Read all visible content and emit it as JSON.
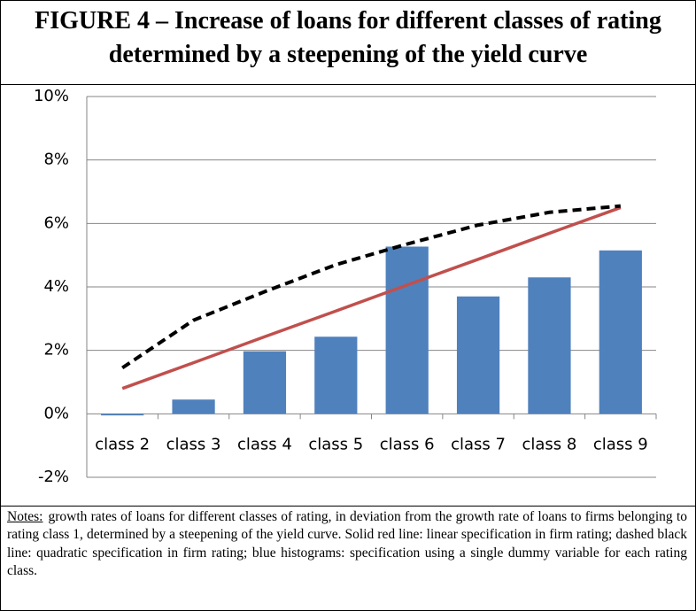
{
  "chart_data": {
    "type": "bar-line",
    "title": "FIGURE 4 – Increase of loans for different classes of rating determined by a steepening of the yield curve",
    "categories": [
      "class 2",
      "class 3",
      "class 4",
      "class 5",
      "class 6",
      "class 7",
      "class 8",
      "class 9"
    ],
    "series": [
      {
        "kind": "bar",
        "color": "#4f81bd",
        "values": [
          -0.05,
          0.45,
          1.97,
          2.43,
          5.27,
          3.7,
          4.3,
          5.15
        ]
      },
      {
        "kind": "line",
        "color": "#c0504d",
        "dash": false,
        "values": [
          0.8,
          1.61,
          2.43,
          3.24,
          4.06,
          4.87,
          5.69,
          6.5
        ]
      },
      {
        "kind": "line",
        "color": "#000000",
        "dash": true,
        "values": [
          1.45,
          2.95,
          3.85,
          4.7,
          5.35,
          5.95,
          6.35,
          6.55
        ]
      }
    ],
    "ylim": [
      -2,
      10
    ],
    "yticks": [
      {
        "value": -2,
        "label": "-2%"
      },
      {
        "value": 0,
        "label": "0%"
      },
      {
        "value": 2,
        "label": "2%"
      },
      {
        "value": 4,
        "label": "4%"
      },
      {
        "value": 6,
        "label": "6%"
      },
      {
        "value": 8,
        "label": "8%"
      },
      {
        "value": 10,
        "label": "10%"
      }
    ],
    "grid": true,
    "notes_label": "Notes:",
    "notes": "growth rates of loans for different classes of rating, in deviation from the growth rate of loans to firms belonging to rating class 1, determined by a steepening of the yield curve. Solid red line: linear specification in firm rating; dashed black line: quadratic specification in firm rating; blue histograms: specification using a single dummy variable for each rating class."
  }
}
